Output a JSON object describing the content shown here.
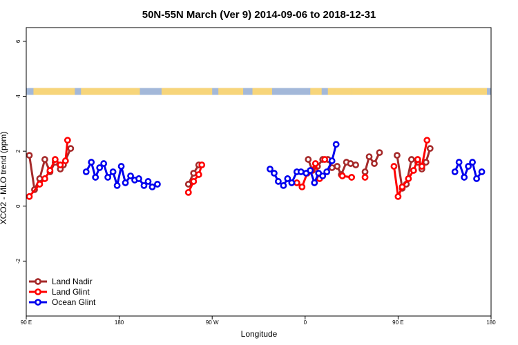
{
  "chart_data": {
    "type": "line",
    "title": "50N-55N March (Ver 9)   2014-09-06 to 2018-12-31",
    "xlabel": "Longitude",
    "ylabel": "XCO2 - MLO trend (ppm)",
    "xlim": [
      90,
      540
    ],
    "ylim": [
      -4,
      6.5
    ],
    "x_ticks": [
      {
        "value": 90,
        "label": "90 E"
      },
      {
        "value": 180,
        "label": "180"
      },
      {
        "value": 270,
        "label": "90 W"
      },
      {
        "value": 360,
        "label": "0"
      },
      {
        "value": 450,
        "label": "90 E"
      },
      {
        "value": 540,
        "label": "180"
      }
    ],
    "y_ticks": [
      {
        "value": -2,
        "label": "-2"
      },
      {
        "value": 0,
        "label": "0"
      },
      {
        "value": 2,
        "label": "2"
      },
      {
        "value": 4,
        "label": "4"
      },
      {
        "value": 6,
        "label": "6"
      }
    ],
    "legend_position": "bottom-left",
    "land_ocean_band": {
      "y_from": 4.05,
      "y_to": 4.3,
      "land_color": "#f7d57a",
      "ocean_color": "#a3b8d9"
    },
    "series": [
      {
        "name": "Land Nadir",
        "color": "#a52a2a",
        "segments": [
          [
            [
              93,
              1.85
            ],
            [
              98,
              0.6
            ],
            [
              103,
              1.0
            ],
            [
              108,
              1.7
            ],
            [
              113,
              1.25
            ],
            [
              118,
              1.6
            ],
            [
              123,
              1.35
            ],
            [
              126,
              1.5
            ],
            [
              133,
              2.1
            ]
          ],
          [
            [
              247,
              0.8
            ],
            [
              252,
              1.2
            ],
            [
              257,
              1.5
            ]
          ],
          [
            [
              363,
              1.7
            ],
            [
              367,
              1.3
            ],
            [
              372,
              1.45
            ],
            [
              377,
              1.7
            ],
            [
              382,
              1.7
            ],
            [
              386,
              1.4
            ],
            [
              391,
              1.45
            ],
            [
              395,
              1.15
            ],
            [
              400,
              1.6
            ],
            [
              404,
              1.55
            ],
            [
              409,
              1.5
            ]
          ],
          [
            [
              418,
              1.25
            ],
            [
              422,
              1.8
            ],
            [
              427,
              1.55
            ],
            [
              432,
              1.95
            ]
          ],
          [
            [
              449,
              1.85
            ],
            [
              454,
              0.65
            ],
            [
              458,
              0.8
            ],
            [
              463,
              1.7
            ]
          ],
          [
            [
              469,
              1.6
            ],
            [
              473,
              1.35
            ],
            [
              477,
              1.6
            ],
            [
              481,
              2.1
            ]
          ]
        ]
      },
      {
        "name": "Land Glint",
        "color": "#ff0000",
        "segments": [
          [
            [
              93,
              0.35
            ],
            [
              103,
              0.8
            ],
            [
              108,
              1.0
            ],
            [
              113,
              1.3
            ],
            [
              118,
              1.7
            ],
            [
              123,
              1.5
            ],
            [
              128,
              1.65
            ],
            [
              130,
              2.4
            ]
          ],
          [
            [
              247,
              0.5
            ],
            [
              252,
              0.9
            ],
            [
              257,
              1.15
            ],
            [
              260,
              1.5
            ]
          ],
          [
            [
              352,
              0.85
            ],
            [
              357,
              0.7
            ],
            [
              362,
              1.2
            ],
            [
              366,
              1.3
            ],
            [
              370,
              1.55
            ],
            [
              374,
              1.0
            ]
          ],
          [
            [
              379,
              1.7
            ]
          ],
          [
            [
              396,
              1.1
            ],
            [
              405,
              1.05
            ]
          ],
          [
            [
              418,
              1.05
            ]
          ],
          [
            [
              446,
              1.45
            ],
            [
              450,
              0.35
            ],
            [
              454,
              0.7
            ],
            [
              460,
              1.0
            ],
            [
              465,
              1.3
            ],
            [
              469,
              1.7
            ],
            [
              473,
              1.45
            ],
            [
              478,
              2.4
            ]
          ]
        ]
      },
      {
        "name": "Ocean Glint",
        "color": "#0000ee",
        "segments": [
          [
            [
              148,
              1.25
            ],
            [
              153,
              1.6
            ],
            [
              157,
              1.05
            ],
            [
              161,
              1.4
            ],
            [
              165,
              1.55
            ],
            [
              169,
              1.05
            ],
            [
              174,
              1.25
            ],
            [
              178,
              0.75
            ],
            [
              182,
              1.45
            ],
            [
              186,
              0.85
            ],
            [
              191,
              1.1
            ],
            [
              195,
              0.95
            ],
            [
              199,
              1.0
            ],
            [
              204,
              0.75
            ],
            [
              208,
              0.9
            ],
            [
              212,
              0.7
            ],
            [
              217,
              0.8
            ]
          ],
          [
            [
              326,
              1.35
            ],
            [
              330,
              1.2
            ],
            [
              334,
              0.9
            ],
            [
              339,
              0.75
            ],
            [
              343,
              1.0
            ],
            [
              347,
              0.85
            ],
            [
              352,
              1.25
            ],
            [
              356,
              1.25
            ],
            [
              361,
              1.2
            ],
            [
              365,
              1.3
            ],
            [
              369,
              0.85
            ],
            [
              373,
              1.2
            ],
            [
              377,
              1.1
            ],
            [
              381,
              1.25
            ],
            [
              386,
              1.65
            ],
            [
              390,
              2.25
            ]
          ],
          [
            [
              505,
              1.25
            ],
            [
              509,
              1.6
            ],
            [
              514,
              1.05
            ],
            [
              518,
              1.45
            ],
            [
              522,
              1.6
            ],
            [
              526,
              1.0
            ],
            [
              531,
              1.25
            ]
          ]
        ]
      }
    ]
  }
}
